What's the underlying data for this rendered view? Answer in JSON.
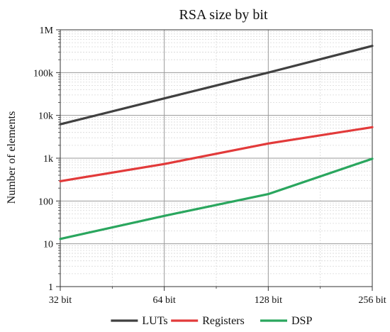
{
  "chart_data": {
    "type": "line",
    "title": "RSA size by bit",
    "xlabel": "",
    "ylabel": "Number of elements",
    "y_scale": "log",
    "x_scale": "log2",
    "ylim": [
      1,
      1000000
    ],
    "grid": true,
    "legend_position": "bottom",
    "categories": [
      "32 bit",
      "64 bit",
      "128 bit",
      "256 bit"
    ],
    "x": [
      32,
      64,
      128,
      256
    ],
    "y_tick_labels": [
      "1",
      "10",
      "100",
      "1k",
      "10k",
      "100k",
      "1M"
    ],
    "series": [
      {
        "name": "LUTs",
        "color": "#404040",
        "values": [
          6200,
          25000,
          100000,
          420000
        ]
      },
      {
        "name": "Registers",
        "color": "#e23a3a",
        "values": [
          290,
          730,
          2200,
          5300
        ]
      },
      {
        "name": "DSP",
        "color": "#2aa65e",
        "values": [
          13,
          45,
          145,
          970
        ]
      }
    ]
  }
}
